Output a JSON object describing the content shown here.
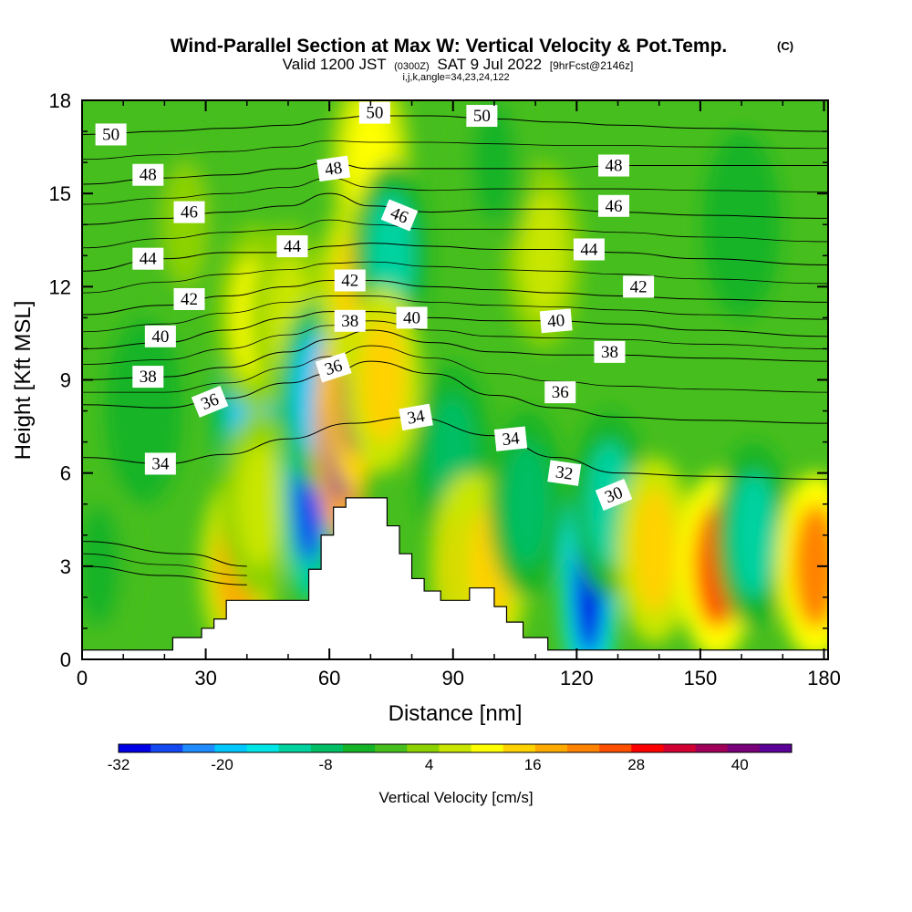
{
  "header": {
    "title": "Wind-Parallel Section at Max W: Vertical Velocity & Pot.Temp.",
    "copyright": "(C)",
    "valid_prefix": "Valid 1200 JST",
    "valid_utc": "(0300Z)",
    "valid_date": "SAT 9 Jul 2022",
    "forecast_tag": "[9hrFcst@2146z]",
    "grid_info": "i,j,k,angle=34,23,24,122"
  },
  "colorbar": {
    "label": "Vertical Velocity [cm/s]",
    "tick_labels": [
      "-32",
      "-20",
      "-8",
      "4",
      "16",
      "28",
      "40"
    ],
    "colors": [
      "#0000e6",
      "#1448f0",
      "#1e8cff",
      "#00c8ff",
      "#00e6e6",
      "#00d2a0",
      "#00be64",
      "#14b428",
      "#46be1e",
      "#8cd200",
      "#c8e600",
      "#ffff00",
      "#ffd200",
      "#ffaa00",
      "#ff8200",
      "#ff5000",
      "#ff0000",
      "#d20032",
      "#a0005a",
      "#780078",
      "#5a0096"
    ]
  },
  "chart_data": {
    "type": "heatmap",
    "title": "Wind-Parallel Section at Max W: Vertical Velocity & Pot.Temp.",
    "xlabel": "Distance [nm]",
    "ylabel": "Height [Kft MSL]",
    "xlim": [
      0,
      181
    ],
    "ylim": [
      0,
      18
    ],
    "xticks": [
      0,
      30,
      60,
      90,
      120,
      150,
      180
    ],
    "yticks": [
      0,
      3,
      6,
      9,
      12,
      15,
      18
    ],
    "colorbar_label": "Vertical Velocity [cm/s]",
    "colorbar_range": [
      -32,
      46
    ],
    "terrain_profile": [
      [
        0,
        0.3
      ],
      [
        22,
        0.3
      ],
      [
        22,
        0.7
      ],
      [
        29,
        0.7
      ],
      [
        29,
        1.0
      ],
      [
        32,
        1.0
      ],
      [
        32,
        1.3
      ],
      [
        35,
        1.3
      ],
      [
        35,
        1.9
      ],
      [
        48,
        1.9
      ],
      [
        48,
        1.9
      ],
      [
        55,
        1.9
      ],
      [
        55,
        2.9
      ],
      [
        58,
        2.9
      ],
      [
        58,
        4.0
      ],
      [
        61,
        4.0
      ],
      [
        61,
        4.9
      ],
      [
        64,
        4.9
      ],
      [
        64,
        5.2
      ],
      [
        67,
        5.2
      ],
      [
        67,
        5.2
      ],
      [
        74,
        5.2
      ],
      [
        74,
        4.3
      ],
      [
        77,
        4.3
      ],
      [
        77,
        3.4
      ],
      [
        80,
        3.4
      ],
      [
        80,
        2.6
      ],
      [
        83,
        2.6
      ],
      [
        83,
        2.2
      ],
      [
        87,
        2.2
      ],
      [
        87,
        1.9
      ],
      [
        94,
        1.9
      ],
      [
        94,
        2.3
      ],
      [
        100,
        2.3
      ],
      [
        100,
        1.7
      ],
      [
        103,
        1.7
      ],
      [
        103,
        1.2
      ],
      [
        107,
        1.2
      ],
      [
        107,
        0.7
      ],
      [
        113,
        0.7
      ],
      [
        113,
        0.3
      ],
      [
        181,
        0.3
      ]
    ],
    "vertical_velocity_cells": [
      {
        "x": 4,
        "z": 3,
        "w": -4
      },
      {
        "x": 15,
        "z": 8,
        "w": -6
      },
      {
        "x": 38,
        "z": 3,
        "w": 18
      },
      {
        "x": 41,
        "z": 8,
        "w": -18
      },
      {
        "x": 42,
        "z": 11,
        "w": 10
      },
      {
        "x": 43,
        "z": 5,
        "w": 8
      },
      {
        "x": 50,
        "z": 11,
        "w": 6
      },
      {
        "x": 55,
        "z": 5.5,
        "w": -28
      },
      {
        "x": 57,
        "z": 8.5,
        "w": -18
      },
      {
        "x": 63,
        "z": 7.5,
        "w": 44
      },
      {
        "x": 66,
        "z": 9,
        "w": 36
      },
      {
        "x": 67,
        "z": 12,
        "w": 16
      },
      {
        "x": 70,
        "z": 16,
        "w": 12
      },
      {
        "x": 75,
        "z": 13,
        "w": -10
      },
      {
        "x": 73,
        "z": 9,
        "w": 14
      },
      {
        "x": 90,
        "z": 6.5,
        "w": -8
      },
      {
        "x": 94,
        "z": 3,
        "w": 18
      },
      {
        "x": 99,
        "z": 3,
        "w": 16
      },
      {
        "x": 108,
        "z": 5,
        "w": -8
      },
      {
        "x": 112,
        "z": 13,
        "w": 6
      },
      {
        "x": 123,
        "z": 2.5,
        "w": -32
      },
      {
        "x": 128,
        "z": 5,
        "w": -10
      },
      {
        "x": 139,
        "z": 3.5,
        "w": 16
      },
      {
        "x": 154,
        "z": 3,
        "w": 24
      },
      {
        "x": 163,
        "z": 4,
        "w": -12
      },
      {
        "x": 178,
        "z": 3,
        "w": 20
      },
      {
        "x": 160,
        "z": 14,
        "w": -6
      },
      {
        "x": 25,
        "z": 14,
        "w": 2
      },
      {
        "x": 100,
        "z": 16,
        "w": -4
      }
    ],
    "potential_temperature_contours": [
      {
        "level": 30,
        "points": [
          [
            0,
            3.0
          ],
          [
            20,
            2.7
          ],
          [
            40,
            2.4
          ]
        ],
        "label": "30",
        "label_at": [
          129,
          5.3
        ]
      },
      {
        "level": 32,
        "points": [
          [
            0,
            3.8
          ],
          [
            25,
            3.4
          ],
          [
            40,
            3.0
          ]
        ],
        "label": "32",
        "label_at": [
          117,
          6.0
        ]
      },
      {
        "level": 34,
        "points": [
          [
            0,
            6.5
          ],
          [
            20,
            6.3
          ],
          [
            35,
            6.6
          ],
          [
            50,
            7.1
          ],
          [
            65,
            7.6
          ],
          [
            80,
            7.8
          ],
          [
            100,
            7.2
          ],
          [
            115,
            6.5
          ],
          [
            130,
            6.0
          ],
          [
            150,
            5.9
          ],
          [
            181,
            5.8
          ]
        ],
        "label": "34",
        "label_at": [
          97,
          6.9
        ]
      },
      {
        "level": 36,
        "points": [
          [
            0,
            8.2
          ],
          [
            20,
            8.1
          ],
          [
            35,
            8.4
          ],
          [
            50,
            8.9
          ],
          [
            60,
            9.2
          ],
          [
            70,
            9.6
          ],
          [
            85,
            9.2
          ],
          [
            100,
            8.5
          ],
          [
            115,
            8.1
          ],
          [
            130,
            7.8
          ],
          [
            150,
            7.7
          ],
          [
            181,
            7.6
          ]
        ],
        "label": "36",
        "label_at": [
          116,
          8.6
        ]
      },
      {
        "level": 38,
        "points": [
          [
            0,
            9.0
          ],
          [
            20,
            9.1
          ],
          [
            35,
            9.4
          ],
          [
            50,
            9.9
          ],
          [
            60,
            10.3
          ],
          [
            70,
            10.6
          ],
          [
            85,
            10.2
          ],
          [
            100,
            9.9
          ],
          [
            115,
            9.8
          ],
          [
            130,
            9.8
          ],
          [
            150,
            9.7
          ],
          [
            181,
            9.6
          ]
        ],
        "label": "38",
        "label_at": [
          128,
          9.9
        ]
      },
      {
        "level": 40,
        "points": [
          [
            0,
            10.0
          ],
          [
            20,
            10.2
          ],
          [
            35,
            10.6
          ],
          [
            50,
            11.0
          ],
          [
            60,
            11.2
          ],
          [
            70,
            11.2
          ],
          [
            85,
            11.0
          ],
          [
            100,
            10.9
          ],
          [
            115,
            10.9
          ],
          [
            130,
            10.8
          ],
          [
            150,
            10.6
          ],
          [
            181,
            10.4
          ]
        ],
        "label": "40",
        "label_at": [
          115,
          10.9
        ]
      },
      {
        "level": 42,
        "points": [
          [
            0,
            11.1
          ],
          [
            20,
            11.4
          ],
          [
            35,
            11.7
          ],
          [
            50,
            12.0
          ],
          [
            60,
            12.2
          ],
          [
            70,
            12.2
          ],
          [
            85,
            12.0
          ],
          [
            100,
            11.9
          ],
          [
            115,
            11.8
          ],
          [
            130,
            11.7
          ],
          [
            150,
            11.6
          ],
          [
            181,
            11.5
          ]
        ],
        "label": "42",
        "label_at": [
          135,
          12.0
        ]
      },
      {
        "level": 44,
        "points": [
          [
            0,
            12.5
          ],
          [
            20,
            12.9
          ],
          [
            35,
            13.1
          ],
          [
            50,
            13.1
          ],
          [
            60,
            13.3
          ],
          [
            70,
            13.4
          ],
          [
            85,
            13.3
          ],
          [
            100,
            13.2
          ],
          [
            115,
            13.2
          ],
          [
            130,
            13.1
          ],
          [
            150,
            12.9
          ],
          [
            181,
            12.7
          ]
        ],
        "label": "44",
        "label_at": [
          123,
          13.2
        ]
      },
      {
        "level": 46,
        "points": [
          [
            0,
            14.0
          ],
          [
            20,
            14.2
          ],
          [
            35,
            14.4
          ],
          [
            50,
            14.6
          ],
          [
            60,
            15.0
          ],
          [
            70,
            14.6
          ],
          [
            85,
            14.4
          ],
          [
            100,
            14.5
          ],
          [
            115,
            14.5
          ],
          [
            130,
            14.4
          ],
          [
            150,
            14.3
          ],
          [
            181,
            14.2
          ]
        ],
        "label": "46",
        "label_at": [
          129,
          14.6
        ]
      },
      {
        "level": 48,
        "points": [
          [
            0,
            15.3
          ],
          [
            20,
            15.5
          ],
          [
            35,
            15.6
          ],
          [
            50,
            15.8
          ],
          [
            60,
            16.0
          ],
          [
            70,
            15.8
          ],
          [
            85,
            15.8
          ],
          [
            100,
            15.8
          ],
          [
            115,
            15.8
          ],
          [
            130,
            15.9
          ],
          [
            150,
            15.9
          ],
          [
            181,
            15.9
          ]
        ],
        "label": "48",
        "label_at": [
          129,
          15.9
        ]
      },
      {
        "level": 50,
        "points": [
          [
            0,
            16.9
          ],
          [
            20,
            17.0
          ],
          [
            35,
            17.1
          ],
          [
            50,
            17.2
          ],
          [
            60,
            17.4
          ],
          [
            70,
            17.5
          ],
          [
            85,
            17.5
          ],
          [
            100,
            17.4
          ],
          [
            115,
            17.3
          ],
          [
            130,
            17.2
          ],
          [
            150,
            17.1
          ],
          [
            181,
            17.0
          ]
        ],
        "label": "50",
        "label_at": [
          97,
          17.5
        ]
      }
    ],
    "contour_labels": [
      {
        "text": "50",
        "x": 7,
        "z": 16.9,
        "rot": 0
      },
      {
        "text": "50",
        "x": 71,
        "z": 17.6,
        "rot": 0
      },
      {
        "text": "50",
        "x": 97,
        "z": 17.5,
        "rot": 0
      },
      {
        "text": "48",
        "x": 16,
        "z": 15.6,
        "rot": 0
      },
      {
        "text": "48",
        "x": 61,
        "z": 15.8,
        "rot": -8
      },
      {
        "text": "48",
        "x": 129,
        "z": 15.9,
        "rot": 0
      },
      {
        "text": "46",
        "x": 26,
        "z": 14.4,
        "rot": 0
      },
      {
        "text": "46",
        "x": 77,
        "z": 14.3,
        "rot": 22
      },
      {
        "text": "46",
        "x": 129,
        "z": 14.6,
        "rot": 0
      },
      {
        "text": "44",
        "x": 16,
        "z": 12.9,
        "rot": 0
      },
      {
        "text": "44",
        "x": 51,
        "z": 13.3,
        "rot": 0
      },
      {
        "text": "44",
        "x": 123,
        "z": 13.2,
        "rot": 0
      },
      {
        "text": "42",
        "x": 26,
        "z": 11.6,
        "rot": 0
      },
      {
        "text": "42",
        "x": 65,
        "z": 12.2,
        "rot": 0
      },
      {
        "text": "42",
        "x": 135,
        "z": 12.0,
        "rot": 0
      },
      {
        "text": "40",
        "x": 19,
        "z": 10.4,
        "rot": 0
      },
      {
        "text": "40",
        "x": 80,
        "z": 11.0,
        "rot": 0
      },
      {
        "text": "40",
        "x": 115,
        "z": 10.9,
        "rot": -5
      },
      {
        "text": "38",
        "x": 16,
        "z": 9.1,
        "rot": 0
      },
      {
        "text": "38",
        "x": 65,
        "z": 10.9,
        "rot": 0
      },
      {
        "text": "38",
        "x": 128,
        "z": 9.9,
        "rot": 0
      },
      {
        "text": "36",
        "x": 31,
        "z": 8.3,
        "rot": -22
      },
      {
        "text": "36",
        "x": 61,
        "z": 9.4,
        "rot": -18
      },
      {
        "text": "36",
        "x": 116,
        "z": 8.6,
        "rot": 0
      },
      {
        "text": "34",
        "x": 19,
        "z": 6.3,
        "rot": 0
      },
      {
        "text": "34",
        "x": 81,
        "z": 7.8,
        "rot": -10
      },
      {
        "text": "34",
        "x": 104,
        "z": 7.1,
        "rot": -6
      },
      {
        "text": "32",
        "x": 117,
        "z": 6.0,
        "rot": 8
      },
      {
        "text": "30",
        "x": 129,
        "z": 5.3,
        "rot": -22
      }
    ]
  }
}
